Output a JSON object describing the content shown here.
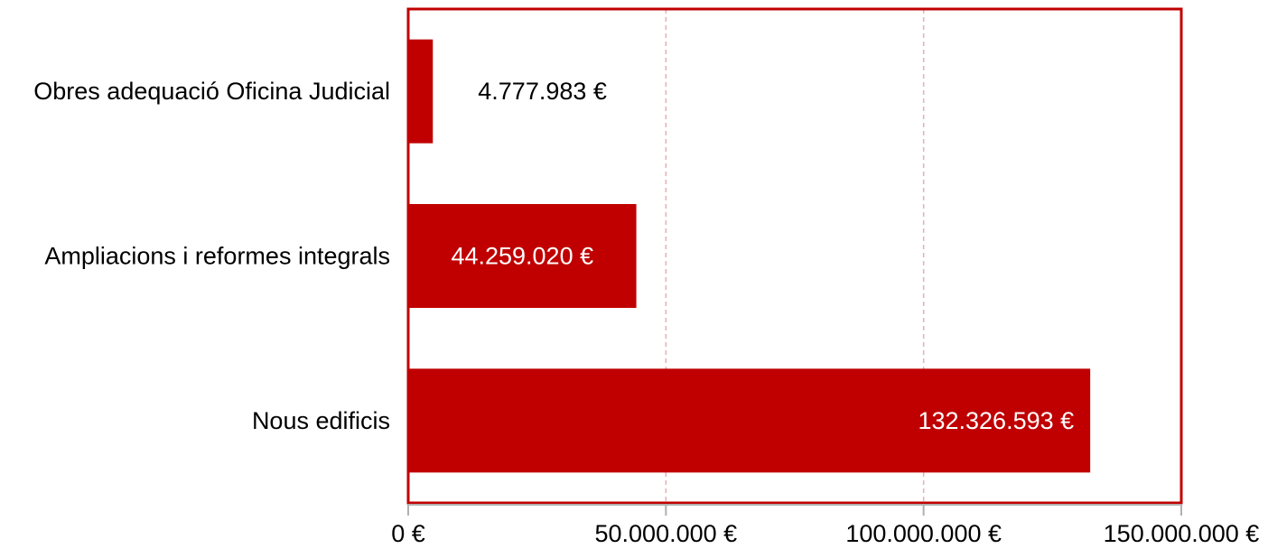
{
  "chart_data": {
    "type": "bar",
    "orientation": "horizontal",
    "categories": [
      "Obres adequació Oficina Judicial",
      "Ampliacions i reformes integrals",
      "Nous edificis"
    ],
    "values": [
      4777983,
      44259020,
      132326593
    ],
    "value_labels": [
      "4.777.983 €",
      "44.259.020 €",
      "132.326.593 €"
    ],
    "xlim": [
      0,
      150000000
    ],
    "x_ticks": [
      0,
      50000000,
      100000000,
      150000000
    ],
    "x_tick_labels": [
      "0 €",
      "50.000.000 €",
      "100.000.000 €",
      "150.000.000 €"
    ],
    "title": "",
    "xlabel": "",
    "ylabel": "",
    "grid": true,
    "legend": "none",
    "colors": {
      "bar": "#c00000",
      "frame": "#c00000",
      "grid": "#e6b0b0",
      "label_dark": "#000000",
      "label_light": "#ffffff",
      "axis": "#b0b0b0"
    }
  }
}
